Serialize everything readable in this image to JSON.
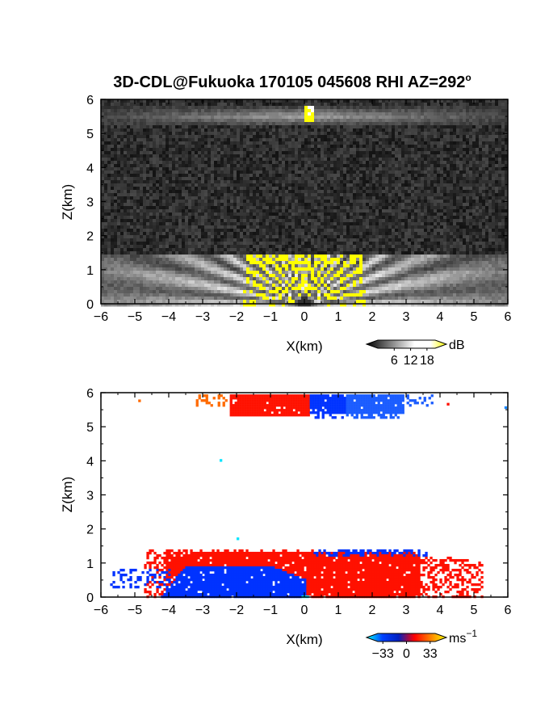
{
  "figure": {
    "title": "3D-CDL@Fukuoka 170105 045608 RHI AZ=292",
    "title_superscript": "o"
  },
  "chart_data": [
    {
      "type": "heatmap",
      "name": "reflectivity",
      "xlabel": "X(km)",
      "ylabel": "Z(km)",
      "xlim": [
        -6,
        6
      ],
      "ylim": [
        0,
        6
      ],
      "xticks": [
        "-6",
        "-5",
        "-4",
        "-3",
        "-2",
        "-1",
        "0",
        "1",
        "2",
        "3",
        "4",
        "5",
        "6"
      ],
      "yticks": [
        "0",
        "1",
        "2",
        "3",
        "4",
        "5",
        "6"
      ],
      "colorbar": {
        "unit": "dB",
        "ticks": [
          "6",
          "12",
          "18"
        ],
        "tick_values": [
          6,
          12,
          18
        ],
        "range": [
          0,
          21
        ],
        "colors": [
          "#000000",
          "#ffffff",
          "#ffff00"
        ]
      },
      "layers": {
        "noise_background_z": [
          0,
          6
        ],
        "boundary_layer_top_km": 1.4,
        "upper_layer_km": [
          5.2,
          5.8
        ],
        "saturated_color": "#ffff00"
      }
    },
    {
      "type": "heatmap",
      "name": "doppler_velocity",
      "xlabel": "X(km)",
      "ylabel": "Z(km)",
      "xlim": [
        -6,
        6
      ],
      "ylim": [
        0,
        6
      ],
      "xticks": [
        "-6",
        "-5",
        "-4",
        "-3",
        "-2",
        "-1",
        "0",
        "1",
        "2",
        "3",
        "4",
        "5",
        "6"
      ],
      "yticks": [
        "0",
        "1",
        "2",
        "3",
        "4",
        "5",
        "6"
      ],
      "colorbar": {
        "unit": "ms",
        "unit_superscript": "−1",
        "ticks": [
          "−33",
          "0",
          "33"
        ],
        "tick_values": [
          -33,
          0,
          33
        ],
        "range": [
          -40,
          40
        ],
        "colors": [
          "#00ffff",
          "#0040ff",
          "#ff0000",
          "#ffff00"
        ]
      },
      "layers": {
        "negative_color": "#0033ff",
        "positive_color": "#ff1100",
        "near_zero_color": "#00e5ff",
        "far_positive_color": "#ff6a00"
      }
    }
  ]
}
